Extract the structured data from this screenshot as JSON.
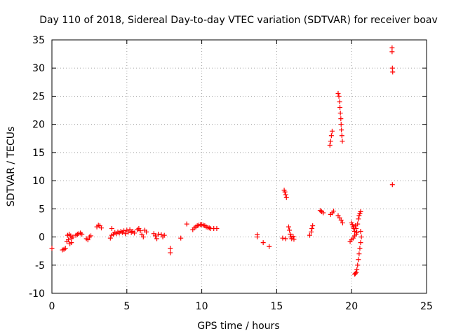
{
  "chart_data": {
    "type": "scatter",
    "title": "Day 110 of 2018, Sidereal Day-to-day VTEC variation (SDTVAR) for receiver boav",
    "xlabel": "GPS time / hours",
    "ylabel": "SDTVAR / TECUs",
    "xlim": [
      0,
      25
    ],
    "ylim": [
      -10,
      35
    ],
    "xticks": [
      0,
      5,
      10,
      15,
      20,
      25
    ],
    "yticks": [
      -10,
      -5,
      0,
      5,
      10,
      15,
      20,
      25,
      30,
      35
    ],
    "grid": true,
    "marker": "+",
    "color": "#ff0000",
    "series": [
      {
        "name": "SDTVAR",
        "points": [
          [
            0.0,
            -2.0
          ],
          [
            0.7,
            -2.3
          ],
          [
            0.8,
            -2.2
          ],
          [
            0.9,
            -2.0
          ],
          [
            1.0,
            -0.8
          ],
          [
            1.05,
            0.3
          ],
          [
            1.1,
            -0.5
          ],
          [
            1.15,
            0.5
          ],
          [
            1.2,
            -1.2
          ],
          [
            1.25,
            0.2
          ],
          [
            1.3,
            -0.2
          ],
          [
            1.3,
            -1.0
          ],
          [
            1.4,
            0.0
          ],
          [
            1.6,
            0.3
          ],
          [
            1.7,
            0.5
          ],
          [
            1.8,
            0.6
          ],
          [
            1.9,
            0.7
          ],
          [
            2.0,
            0.5
          ],
          [
            2.3,
            -0.3
          ],
          [
            2.4,
            -0.5
          ],
          [
            2.5,
            0.0
          ],
          [
            2.6,
            0.2
          ],
          [
            3.0,
            1.8
          ],
          [
            3.1,
            2.1
          ],
          [
            3.2,
            2.0
          ],
          [
            3.3,
            1.6
          ],
          [
            3.9,
            -0.2
          ],
          [
            4.0,
            0.3
          ],
          [
            4.0,
            1.5
          ],
          [
            4.1,
            0.5
          ],
          [
            4.2,
            0.8
          ],
          [
            4.3,
            0.6
          ],
          [
            4.4,
            0.9
          ],
          [
            4.5,
            0.7
          ],
          [
            4.6,
            1.0
          ],
          [
            4.7,
            0.8
          ],
          [
            4.8,
            1.1
          ],
          [
            4.9,
            0.6
          ],
          [
            5.0,
            1.2
          ],
          [
            5.1,
            0.9
          ],
          [
            5.2,
            1.3
          ],
          [
            5.3,
            0.8
          ],
          [
            5.4,
            1.0
          ],
          [
            5.5,
            0.7
          ],
          [
            5.7,
            1.3
          ],
          [
            5.8,
            1.5
          ],
          [
            5.9,
            1.1
          ],
          [
            6.0,
            0.4
          ],
          [
            6.1,
            0.0
          ],
          [
            6.2,
            1.2
          ],
          [
            6.3,
            0.9
          ],
          [
            6.8,
            0.6
          ],
          [
            6.9,
            0.2
          ],
          [
            7.0,
            -0.3
          ],
          [
            7.1,
            0.5
          ],
          [
            7.3,
            0.4
          ],
          [
            7.4,
            0.0
          ],
          [
            7.5,
            0.3
          ],
          [
            7.9,
            -2.0
          ],
          [
            7.9,
            -2.8
          ],
          [
            8.6,
            -0.2
          ],
          [
            9.0,
            2.3
          ],
          [
            9.4,
            1.3
          ],
          [
            9.5,
            1.6
          ],
          [
            9.6,
            1.8
          ],
          [
            9.7,
            2.0
          ],
          [
            9.8,
            2.1
          ],
          [
            9.9,
            2.2
          ],
          [
            10.0,
            2.2
          ],
          [
            10.1,
            2.1
          ],
          [
            10.2,
            2.0
          ],
          [
            10.3,
            1.8
          ],
          [
            10.4,
            1.7
          ],
          [
            10.5,
            1.6
          ],
          [
            10.6,
            1.5
          ],
          [
            10.8,
            1.5
          ],
          [
            11.0,
            1.5
          ],
          [
            13.7,
            0.0
          ],
          [
            13.7,
            0.4
          ],
          [
            14.1,
            -1.0
          ],
          [
            14.5,
            -1.7
          ],
          [
            15.4,
            -0.2
          ],
          [
            15.5,
            8.3
          ],
          [
            15.55,
            8.0
          ],
          [
            15.6,
            7.5
          ],
          [
            15.65,
            7.0
          ],
          [
            15.6,
            -0.3
          ],
          [
            15.8,
            1.8
          ],
          [
            15.85,
            1.2
          ],
          [
            15.9,
            0.5
          ],
          [
            15.95,
            0.0
          ],
          [
            16.0,
            -0.3
          ],
          [
            16.1,
            0.1
          ],
          [
            16.15,
            -0.4
          ],
          [
            17.2,
            0.3
          ],
          [
            17.3,
            0.9
          ],
          [
            17.35,
            1.5
          ],
          [
            17.4,
            2.0
          ],
          [
            17.9,
            4.7
          ],
          [
            18.0,
            4.5
          ],
          [
            18.1,
            4.3
          ],
          [
            18.55,
            16.3
          ],
          [
            18.6,
            17.0
          ],
          [
            18.65,
            18.0
          ],
          [
            18.7,
            18.8
          ],
          [
            18.6,
            4.0
          ],
          [
            18.7,
            4.3
          ],
          [
            18.8,
            4.6
          ],
          [
            19.1,
            25.5
          ],
          [
            19.15,
            25.0
          ],
          [
            19.2,
            24.0
          ],
          [
            19.22,
            23.0
          ],
          [
            19.25,
            22.0
          ],
          [
            19.28,
            21.0
          ],
          [
            19.3,
            20.0
          ],
          [
            19.32,
            19.0
          ],
          [
            19.35,
            18.0
          ],
          [
            19.38,
            17.0
          ],
          [
            19.1,
            3.8
          ],
          [
            19.2,
            3.4
          ],
          [
            19.3,
            3.0
          ],
          [
            19.4,
            2.5
          ],
          [
            19.9,
            -0.8
          ],
          [
            20.0,
            -0.5
          ],
          [
            20.0,
            2.5
          ],
          [
            20.05,
            2.2
          ],
          [
            20.1,
            -0.2
          ],
          [
            20.1,
            1.8
          ],
          [
            20.15,
            1.5
          ],
          [
            20.2,
            0.2
          ],
          [
            20.2,
            1.0
          ],
          [
            20.25,
            2.0
          ],
          [
            20.3,
            0.5
          ],
          [
            20.3,
            1.5
          ],
          [
            20.35,
            0.8
          ],
          [
            20.4,
            2.3
          ],
          [
            20.45,
            3.2
          ],
          [
            20.5,
            3.8
          ],
          [
            20.55,
            4.2
          ],
          [
            20.6,
            4.5
          ],
          [
            20.6,
            1.0
          ],
          [
            20.65,
            0.0
          ],
          [
            20.6,
            -1.0
          ],
          [
            20.55,
            -2.0
          ],
          [
            20.5,
            -3.0
          ],
          [
            20.45,
            -4.0
          ],
          [
            20.4,
            -5.0
          ],
          [
            20.35,
            -5.8
          ],
          [
            20.3,
            -6.3
          ],
          [
            20.25,
            -6.5
          ],
          [
            20.2,
            -6.6
          ],
          [
            22.7,
            33.6
          ],
          [
            22.7,
            32.9
          ],
          [
            22.72,
            30.0
          ],
          [
            22.74,
            29.3
          ],
          [
            22.72,
            9.3
          ]
        ]
      }
    ]
  }
}
